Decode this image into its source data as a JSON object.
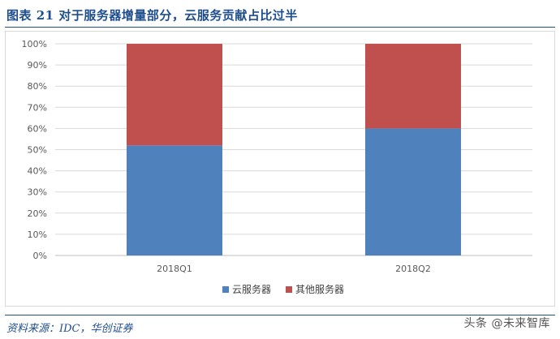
{
  "header": {
    "title": "图表 21   对于服务器增量部分，云服务贡献占比过半"
  },
  "footer": {
    "source": "资料来源：IDC，华创证券",
    "watermark": "头条 @未来智库"
  },
  "chart_data": {
    "type": "bar",
    "stacked": true,
    "categories": [
      "2018Q1",
      "2018Q2"
    ],
    "series": [
      {
        "name": "云服务器",
        "values": [
          52,
          60
        ],
        "color": "#4f81bd"
      },
      {
        "name": "其他服务器",
        "values": [
          48,
          40
        ],
        "color": "#c0504d"
      }
    ],
    "ylim": [
      0,
      100
    ],
    "yticks": [
      "0%",
      "10%",
      "20%",
      "30%",
      "40%",
      "50%",
      "60%",
      "70%",
      "80%",
      "90%",
      "100%"
    ],
    "grid": true,
    "legend_position": "bottom"
  }
}
